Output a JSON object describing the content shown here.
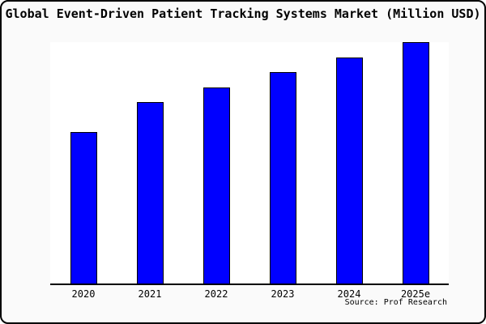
{
  "title": "Global Event-Driven Patient Tracking Systems Market (Million USD)",
  "source_credit": "Source: Prof Research",
  "colors": {
    "bar_fill": "#0000ff",
    "bar_border": "#000000",
    "background": "#fafafa",
    "plot_background": "#ffffff",
    "axis": "#000000",
    "text": "#000000",
    "frame_border": "#000000"
  },
  "chart_data": {
    "type": "bar",
    "categories": [
      "2020",
      "2021",
      "2022",
      "2023",
      "2024",
      "2025e"
    ],
    "values": [
      62.8,
      75.0,
      81.3,
      87.6,
      93.7,
      100.0
    ],
    "values_note": "No y-axis ticks, labels or gridlines are shown in the image; values are relative bar heights estimated from pixels, normalized so 2025e = 100.",
    "title": "Global Event-Driven Patient Tracking Systems Market (Million USD)",
    "xlabel": "",
    "ylabel": "",
    "ylim": [
      0,
      100
    ],
    "grid": false,
    "legend": false,
    "bar_outline": true
  }
}
